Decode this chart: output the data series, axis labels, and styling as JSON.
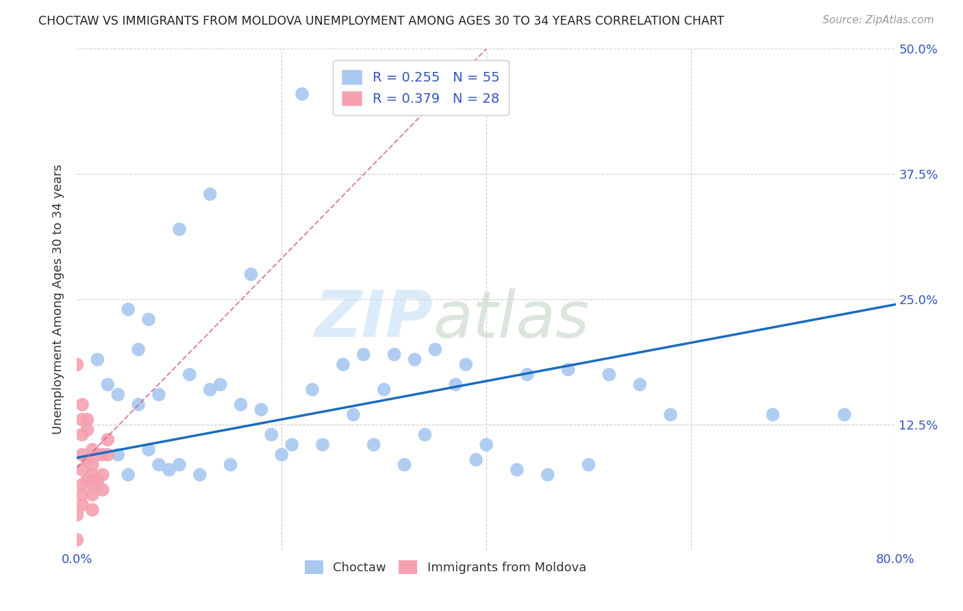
{
  "title": "CHOCTAW VS IMMIGRANTS FROM MOLDOVA UNEMPLOYMENT AMONG AGES 30 TO 34 YEARS CORRELATION CHART",
  "source": "Source: ZipAtlas.com",
  "ylabel": "Unemployment Among Ages 30 to 34 years",
  "xlim": [
    0.0,
    0.8
  ],
  "ylim": [
    0.0,
    0.5
  ],
  "xticks": [
    0.0,
    0.2,
    0.4,
    0.6,
    0.8
  ],
  "xticklabels": [
    "0.0%",
    "",
    "",
    "",
    "80.0%"
  ],
  "yticks": [
    0.0,
    0.125,
    0.25,
    0.375,
    0.5
  ],
  "yticklabels": [
    "",
    "12.5%",
    "25.0%",
    "37.5%",
    "50.0%"
  ],
  "choctaw_R": 0.255,
  "choctaw_N": 55,
  "moldova_R": 0.379,
  "moldova_N": 28,
  "choctaw_color": "#a8c8f0",
  "choctaw_line_color": "#1a6bbf",
  "moldova_color": "#f5a0b0",
  "moldova_line_color": "#d06080",
  "grid_color": "#cccccc",
  "choctaw_line_x0": 0.0,
  "choctaw_line_y0": 0.092,
  "choctaw_line_x1": 0.8,
  "choctaw_line_y1": 0.245,
  "moldova_line_x0": 0.0,
  "moldova_line_y0": 0.082,
  "moldova_line_x1": 0.4,
  "moldova_line_y1": 0.5,
  "choctaw_scatter_x": [
    0.22,
    0.05,
    0.02,
    0.07,
    0.1,
    0.13,
    0.17,
    0.3,
    0.35,
    0.38,
    0.48,
    0.55,
    0.68,
    0.75,
    0.03,
    0.06,
    0.09,
    0.11,
    0.14,
    0.16,
    0.19,
    0.21,
    0.24,
    0.27,
    0.29,
    0.32,
    0.34,
    0.37,
    0.39,
    0.43,
    0.46,
    0.5,
    0.52,
    0.58,
    0.04,
    0.06,
    0.08,
    0.1,
    0.13,
    0.15,
    0.18,
    0.2,
    0.23,
    0.26,
    0.28,
    0.31,
    0.33,
    0.4,
    0.44,
    0.07,
    0.04,
    0.08,
    0.12,
    0.02,
    0.05
  ],
  "choctaw_scatter_y": [
    0.455,
    0.24,
    0.19,
    0.23,
    0.32,
    0.355,
    0.275,
    0.16,
    0.2,
    0.185,
    0.18,
    0.165,
    0.135,
    0.135,
    0.165,
    0.2,
    0.08,
    0.175,
    0.165,
    0.145,
    0.115,
    0.105,
    0.105,
    0.135,
    0.105,
    0.085,
    0.115,
    0.165,
    0.09,
    0.08,
    0.075,
    0.085,
    0.175,
    0.135,
    0.155,
    0.145,
    0.155,
    0.085,
    0.16,
    0.085,
    0.14,
    0.095,
    0.16,
    0.185,
    0.195,
    0.195,
    0.19,
    0.105,
    0.175,
    0.1,
    0.095,
    0.085,
    0.075,
    0.065,
    0.075
  ],
  "moldova_scatter_x": [
    0.0,
    0.0,
    0.005,
    0.005,
    0.005,
    0.005,
    0.005,
    0.005,
    0.005,
    0.005,
    0.01,
    0.01,
    0.01,
    0.01,
    0.015,
    0.015,
    0.015,
    0.015,
    0.015,
    0.015,
    0.02,
    0.02,
    0.025,
    0.025,
    0.025,
    0.03,
    0.03,
    0.0
  ],
  "moldova_scatter_y": [
    0.185,
    0.01,
    0.145,
    0.13,
    0.115,
    0.095,
    0.08,
    0.065,
    0.055,
    0.045,
    0.13,
    0.12,
    0.09,
    0.07,
    0.1,
    0.085,
    0.075,
    0.065,
    0.055,
    0.04,
    0.095,
    0.07,
    0.095,
    0.075,
    0.06,
    0.095,
    0.11,
    0.035
  ]
}
